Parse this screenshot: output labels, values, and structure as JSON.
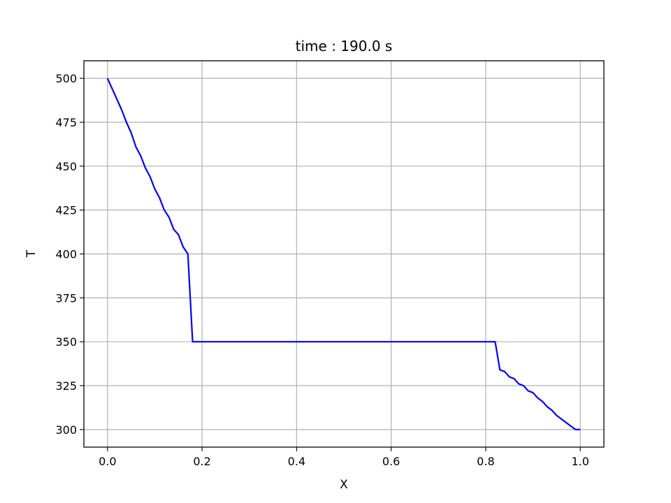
{
  "chart_data": {
    "type": "line",
    "title": "time : 190.0 s",
    "xlabel": "X",
    "ylabel": "T",
    "xlim": [
      -0.05,
      1.05
    ],
    "ylim": [
      290,
      510
    ],
    "xticks": [
      "0.0",
      "0.2",
      "0.4",
      "0.6",
      "0.8",
      "1.0"
    ],
    "xtick_values": [
      0.0,
      0.2,
      0.4,
      0.6,
      0.8,
      1.0
    ],
    "yticks": [
      "300",
      "325",
      "350",
      "375",
      "400",
      "425",
      "450",
      "475",
      "500"
    ],
    "ytick_values": [
      300,
      325,
      350,
      375,
      400,
      425,
      450,
      475,
      500
    ],
    "grid": true,
    "line_color": "#0000ff",
    "series": [
      {
        "x": [
          0.0,
          0.01,
          0.02,
          0.03,
          0.04,
          0.05,
          0.06,
          0.07,
          0.08,
          0.09,
          0.1,
          0.11,
          0.12,
          0.13,
          0.14,
          0.15,
          0.16,
          0.17,
          0.18,
          0.82,
          0.83,
          0.84,
          0.85,
          0.86,
          0.87,
          0.88,
          0.89,
          0.9,
          0.91,
          0.92,
          0.93,
          0.94,
          0.95,
          0.96,
          0.97,
          0.98,
          0.99,
          1.0
        ],
        "y": [
          500,
          494,
          488,
          482,
          475,
          469,
          461,
          456,
          449,
          444,
          437,
          432,
          425,
          421,
          414,
          411,
          404,
          400,
          350,
          350,
          334,
          333,
          330,
          329,
          326,
          325,
          322,
          321,
          318,
          316,
          313,
          311,
          308,
          306,
          304,
          302,
          300,
          300
        ]
      }
    ]
  }
}
